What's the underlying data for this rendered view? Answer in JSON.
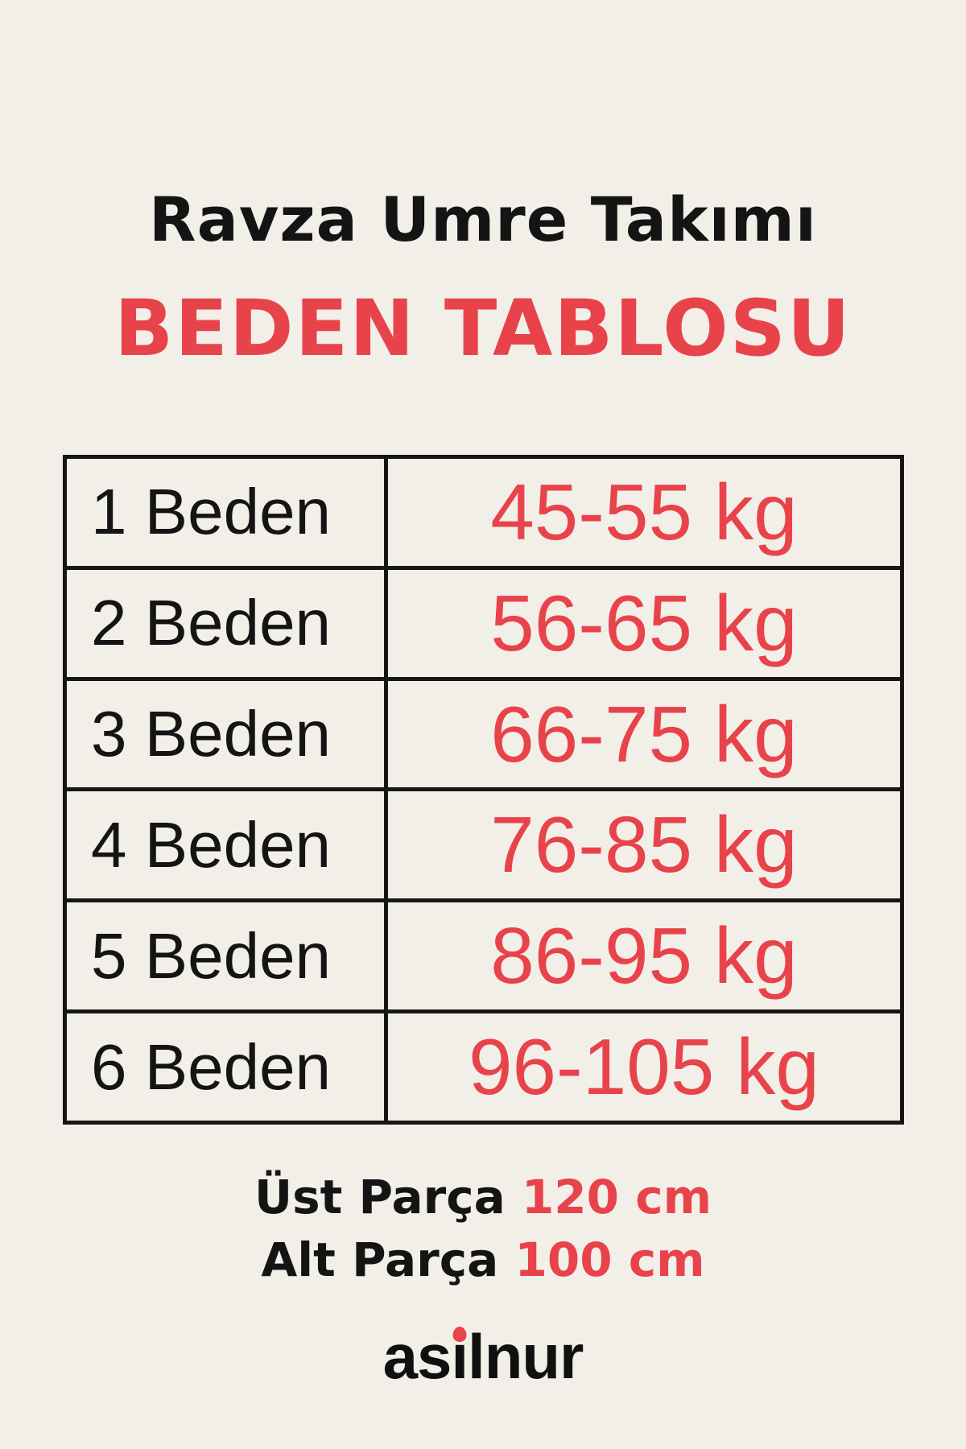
{
  "colors": {
    "background": "#f2efe9",
    "text_black": "#141414",
    "accent_red": "#e8434a"
  },
  "header": {
    "title": "Ravza Umre Takımı",
    "subtitle": "BEDEN TABLOSU"
  },
  "size_table": {
    "rows": [
      {
        "size": "1 Beden",
        "weight": "45-55 kg"
      },
      {
        "size": "2 Beden",
        "weight": "56-65 kg"
      },
      {
        "size": "3 Beden",
        "weight": "66-75 kg"
      },
      {
        "size": "4 Beden",
        "weight": "76-85 kg"
      },
      {
        "size": "5 Beden",
        "weight": "86-95 kg"
      },
      {
        "size": "6 Beden",
        "weight": "96-105 kg"
      }
    ]
  },
  "measurements": {
    "items": [
      {
        "label": "Üst Parça",
        "value": "120 cm"
      },
      {
        "label": "Alt Parça",
        "value": "100 cm"
      }
    ]
  },
  "brand": {
    "name": "asilnur",
    "name_pre": "as",
    "name_i": "ı",
    "name_post": "lnur"
  }
}
